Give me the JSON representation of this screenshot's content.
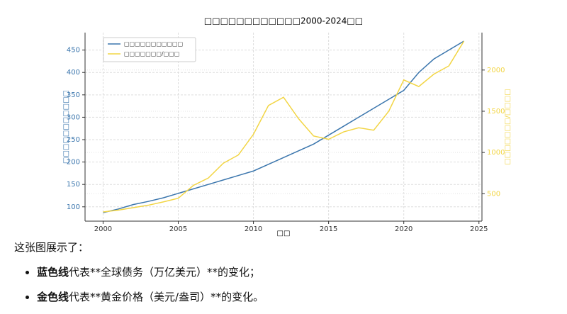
{
  "chart_data": {
    "type": "line",
    "title": "□□□□□□□□□□□□2000-2024□□",
    "xlabel": "□□",
    "ylabel": "□□□□□□□□□□□",
    "y2label": "□□□□□□□/□□□□",
    "x": [
      2000,
      2001,
      2002,
      2003,
      2004,
      2005,
      2006,
      2007,
      2008,
      2009,
      2010,
      2011,
      2012,
      2013,
      2014,
      2015,
      2016,
      2017,
      2018,
      2019,
      2020,
      2021,
      2022,
      2023,
      2024
    ],
    "series": [
      {
        "name": "□□□□□□□□□□□",
        "color": "#3b76ad",
        "values": [
          87,
          95,
          105,
          112,
          120,
          130,
          140,
          150,
          160,
          170,
          180,
          195,
          210,
          225,
          240,
          260,
          280,
          300,
          320,
          340,
          360,
          400,
          430,
          450,
          470
        ]
      },
      {
        "name": "□□□□□□□/□□□",
        "color": "#f2d544",
        "axis": "y2",
        "values": [
          279,
          300,
          330,
          360,
          400,
          445,
          600,
          690,
          870,
          970,
          1220,
          1570,
          1670,
          1410,
          1200,
          1160,
          1250,
          1300,
          1270,
          1500,
          1880,
          1800,
          1950,
          2050,
          2350
        ]
      }
    ],
    "xlim": [
      1998.8,
      2025.2
    ],
    "xticks": [
      2000,
      2005,
      2010,
      2015,
      2020,
      2025
    ],
    "ylim": [
      68,
      489
    ],
    "yticks": [
      100,
      150,
      200,
      250,
      300,
      350,
      400,
      450
    ],
    "y2lim": [
      167,
      2454
    ],
    "y2ticks": [
      500,
      1000,
      1500,
      2000
    ],
    "grid": true,
    "legend": "upper left"
  },
  "text": {
    "intro": "这张图展示了：",
    "bullets": [
      {
        "bold": "蓝色线",
        "rest": "代表**全球债务（万亿美元）**的变化；"
      },
      {
        "bold": "金色线",
        "rest": "代表**黄金价格（美元/盎司）**的变化。"
      }
    ]
  }
}
